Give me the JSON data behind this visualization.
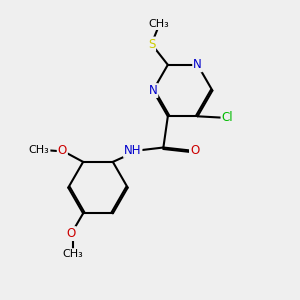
{
  "bg_color": "#efefef",
  "bond_color": "#000000",
  "bond_width": 1.5,
  "dbo": 0.055,
  "atom_colors": {
    "N": "#0000cc",
    "O": "#cc0000",
    "S": "#cccc00",
    "Cl": "#00bb00",
    "C": "#000000",
    "H": "#000000"
  },
  "font_size": 8.5,
  "fig_size": [
    3.0,
    3.0
  ],
  "dpi": 100,
  "xlim": [
    0,
    10
  ],
  "ylim": [
    0,
    10
  ]
}
